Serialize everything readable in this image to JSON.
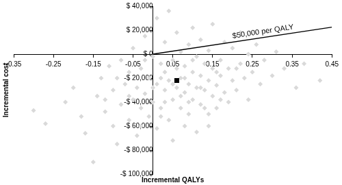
{
  "chart_data": {
    "type": "scatter",
    "x_label": "Incremental QALYs",
    "y_label": "Incremental cost",
    "xlim": [
      -0.35,
      0.45
    ],
    "xticks": [
      -0.35,
      -0.25,
      -0.15,
      -0.05,
      0.05,
      0.15,
      0.25,
      0.35,
      0.45
    ],
    "ylim": [
      -100000,
      40000
    ],
    "yticks": [
      {
        "value": -100000,
        "label": "-$ 100,000"
      },
      {
        "value": -80000,
        "label": "-$ 80,000"
      },
      {
        "value": -60000,
        "label": "-$ 60,000"
      },
      {
        "value": -40000,
        "label": "-$ 40,000"
      },
      {
        "value": -20000,
        "label": "-$ 20,000"
      },
      {
        "value": 0,
        "label": "$ 0"
      },
      {
        "value": 20000,
        "label": "$ 20,000"
      },
      {
        "value": 40000,
        "label": "$ 40,000"
      }
    ],
    "grid": false,
    "series": [
      {
        "color": "#d9d9d9",
        "marker": "diamond",
        "x": [
          -0.3,
          -0.27,
          -0.22,
          -0.2,
          -0.18,
          -0.17,
          -0.15,
          -0.14,
          -0.13,
          -0.12,
          -0.11,
          -0.1,
          -0.1,
          -0.09,
          -0.08,
          -0.08,
          -0.07,
          -0.06,
          -0.06,
          -0.05,
          -0.05,
          -0.04,
          -0.04,
          -0.03,
          -0.03,
          -0.02,
          -0.02,
          -0.01,
          -0.01,
          0.0,
          0.0,
          0.01,
          0.01,
          0.01,
          0.02,
          0.02,
          0.03,
          0.03,
          0.03,
          0.04,
          0.04,
          0.04,
          0.05,
          0.05,
          0.05,
          0.06,
          0.06,
          0.06,
          0.07,
          0.07,
          0.07,
          0.08,
          0.08,
          0.08,
          0.09,
          0.09,
          0.09,
          0.1,
          0.1,
          0.1,
          0.11,
          0.11,
          0.11,
          0.12,
          0.12,
          0.12,
          0.13,
          0.13,
          0.14,
          0.14,
          0.14,
          0.15,
          0.15,
          0.15,
          0.16,
          0.16,
          0.17,
          0.17,
          0.18,
          0.18,
          0.19,
          0.19,
          0.2,
          0.2,
          0.21,
          0.22,
          0.22,
          0.23,
          0.24,
          0.24,
          0.25,
          0.26,
          0.27,
          0.28,
          0.3,
          0.31,
          0.33,
          0.36,
          0.38,
          0.42,
          0.02,
          0.05,
          0.08,
          0.03,
          0.1,
          0.13,
          -0.02,
          0.0,
          0.07,
          0.12,
          -0.06,
          0.17,
          -0.09,
          0.21,
          0.02,
          -0.12,
          0.09,
          0.16,
          -0.03,
          0.14
        ],
        "values": [
          -47000,
          -58000,
          -40000,
          -28000,
          -52000,
          -66000,
          -90000,
          -35000,
          -20000,
          -48000,
          -10000,
          -60000,
          -30000,
          -75000,
          -42000,
          -5000,
          -25000,
          -55000,
          -15000,
          -38000,
          5000,
          -68000,
          -28000,
          -45000,
          -12000,
          15000,
          -33000,
          -52000,
          -20000,
          -2000,
          -40000,
          30000,
          -62000,
          -25000,
          -8000,
          -45000,
          -30000,
          -15000,
          10000,
          -55000,
          -22000,
          36000,
          -38000,
          -5000,
          -72000,
          -28000,
          -12000,
          18000,
          -45000,
          -20000,
          2000,
          -60000,
          -32000,
          -10000,
          -25000,
          8000,
          -50000,
          -38000,
          -15000,
          22000,
          -28000,
          -2000,
          -65000,
          -42000,
          -18000,
          12000,
          -30000,
          -8000,
          -50000,
          -22000,
          3000,
          -35000,
          -12000,
          25000,
          -26000,
          -45000,
          -5000,
          -18000,
          -32000,
          10000,
          -12000,
          -40000,
          -22000,
          5000,
          -30000,
          -8000,
          18000,
          -20000,
          -38000,
          0,
          -15000,
          8000,
          -25000,
          -5000,
          -18000,
          2000,
          -12000,
          -28000,
          -8000,
          -22000,
          -20000,
          -25000,
          -20000,
          -40000,
          -5000,
          -45000,
          -5000,
          -28000,
          -35000,
          -28000,
          -35000,
          -38000,
          -20000,
          -12000,
          -52000,
          -38000,
          -40000,
          -15000,
          -60000,
          -60000
        ]
      },
      {
        "color": "#000000",
        "marker": "square",
        "x": [
          0.06
        ],
        "values": [
          -22000
        ]
      }
    ],
    "threshold": {
      "label": "$50,000 per QALY",
      "x": [
        0,
        0.45
      ],
      "values": [
        0,
        22500
      ],
      "color": "#000000"
    }
  }
}
